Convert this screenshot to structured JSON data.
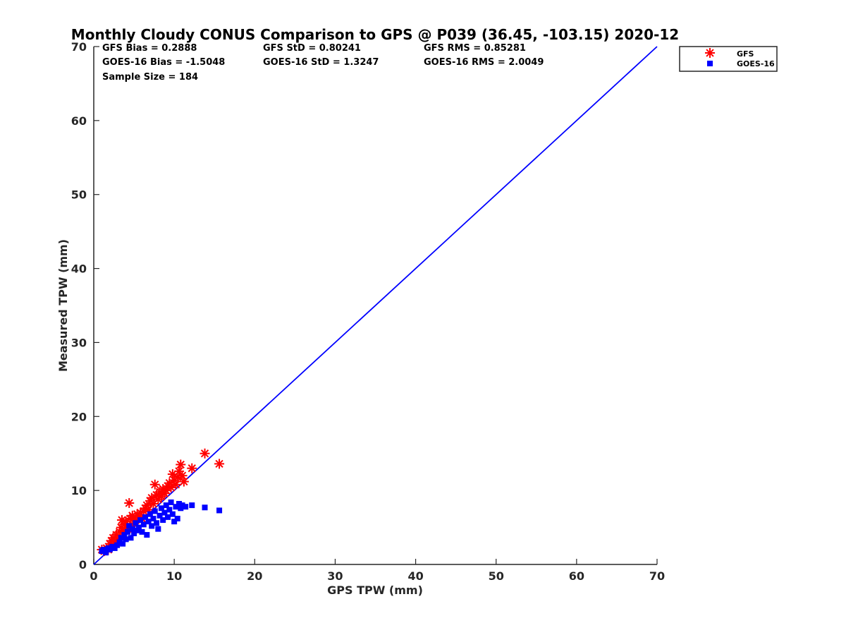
{
  "chart_data": {
    "type": "scatter",
    "title": "Monthly Cloudy CONUS Comparison to GPS @ P039 (36.45, -103.15) 2020-12",
    "xlabel": "GPS TPW (mm)",
    "ylabel": "Measured TPW (mm)",
    "xlim": [
      0,
      70
    ],
    "ylim": [
      0,
      70
    ],
    "xticks": [
      0,
      10,
      20,
      30,
      40,
      50,
      60,
      70
    ],
    "yticks": [
      0,
      10,
      20,
      30,
      40,
      50,
      60,
      70
    ],
    "grid": false,
    "legend_position": "top-right-outside",
    "stats": [
      "GFS Bias = 0.2888",
      "GFS StD = 0.80241",
      "GFS RMS = 0.85281",
      "GOES-16 Bias = -1.5048",
      "GOES-16 StD = 1.3247",
      "GOES-16 RMS = 2.0049",
      "Sample Size = 184"
    ],
    "reference_line": {
      "x": [
        0,
        70
      ],
      "y": [
        0,
        70
      ],
      "color": "#0000ff"
    },
    "series": [
      {
        "name": "GFS",
        "marker": "asterisk",
        "color": "#ff0000",
        "points": [
          [
            1.0,
            2.0
          ],
          [
            1.3,
            1.8
          ],
          [
            1.6,
            2.2
          ],
          [
            1.8,
            2.0
          ],
          [
            2.0,
            2.8
          ],
          [
            2.2,
            3.2
          ],
          [
            2.4,
            3.6
          ],
          [
            2.6,
            3.0
          ],
          [
            2.8,
            4.0
          ],
          [
            3.0,
            3.4
          ],
          [
            3.2,
            4.4
          ],
          [
            3.4,
            5.0
          ],
          [
            3.5,
            6.0
          ],
          [
            3.6,
            4.6
          ],
          [
            3.8,
            5.4
          ],
          [
            4.0,
            5.8
          ],
          [
            4.2,
            4.8
          ],
          [
            4.4,
            8.3
          ],
          [
            4.5,
            6.2
          ],
          [
            4.6,
            5.2
          ],
          [
            4.8,
            6.6
          ],
          [
            5.0,
            5.6
          ],
          [
            5.2,
            6.0
          ],
          [
            5.4,
            6.8
          ],
          [
            5.6,
            6.4
          ],
          [
            5.8,
            7.0
          ],
          [
            6.0,
            6.2
          ],
          [
            6.2,
            7.2
          ],
          [
            6.4,
            7.6
          ],
          [
            6.6,
            8.0
          ],
          [
            6.8,
            7.4
          ],
          [
            7.0,
            8.6
          ],
          [
            7.2,
            9.0
          ],
          [
            7.4,
            8.2
          ],
          [
            7.6,
            10.8
          ],
          [
            7.8,
            9.4
          ],
          [
            8.0,
            8.8
          ],
          [
            8.2,
            9.8
          ],
          [
            8.4,
            9.2
          ],
          [
            8.6,
            10.2
          ],
          [
            8.8,
            9.6
          ],
          [
            9.0,
            10.0
          ],
          [
            9.2,
            10.6
          ],
          [
            9.4,
            11.0
          ],
          [
            9.6,
            10.4
          ],
          [
            9.8,
            12.2
          ],
          [
            10.0,
            11.4
          ],
          [
            10.2,
            10.8
          ],
          [
            10.4,
            11.8
          ],
          [
            10.6,
            12.6
          ],
          [
            10.8,
            13.5
          ],
          [
            11.0,
            12.0
          ],
          [
            11.2,
            11.2
          ],
          [
            12.2,
            13.0
          ],
          [
            13.8,
            15.0
          ],
          [
            15.6,
            13.6
          ]
        ]
      },
      {
        "name": "GOES-16",
        "marker": "square",
        "color": "#0000ff",
        "points": [
          [
            1.0,
            1.8
          ],
          [
            1.2,
            2.0
          ],
          [
            1.5,
            1.6
          ],
          [
            1.8,
            2.2
          ],
          [
            2.0,
            2.0
          ],
          [
            2.3,
            2.4
          ],
          [
            2.6,
            2.2
          ],
          [
            2.9,
            2.6
          ],
          [
            3.2,
            3.0
          ],
          [
            3.4,
            3.6
          ],
          [
            3.6,
            2.8
          ],
          [
            3.8,
            4.0
          ],
          [
            4.0,
            3.4
          ],
          [
            4.2,
            4.4
          ],
          [
            4.4,
            5.2
          ],
          [
            4.6,
            3.6
          ],
          [
            4.8,
            4.8
          ],
          [
            5.0,
            4.2
          ],
          [
            5.2,
            5.6
          ],
          [
            5.4,
            4.6
          ],
          [
            5.6,
            5.0
          ],
          [
            5.8,
            6.0
          ],
          [
            6.0,
            4.4
          ],
          [
            6.2,
            5.4
          ],
          [
            6.4,
            6.4
          ],
          [
            6.6,
            4.0
          ],
          [
            6.8,
            5.8
          ],
          [
            7.0,
            6.8
          ],
          [
            7.2,
            5.2
          ],
          [
            7.4,
            6.2
          ],
          [
            7.6,
            7.2
          ],
          [
            7.8,
            5.6
          ],
          [
            8.0,
            4.8
          ],
          [
            8.2,
            6.6
          ],
          [
            8.4,
            7.6
          ],
          [
            8.6,
            6.0
          ],
          [
            8.8,
            7.0
          ],
          [
            9.0,
            8.0
          ],
          [
            9.2,
            6.4
          ],
          [
            9.4,
            7.4
          ],
          [
            9.6,
            8.4
          ],
          [
            9.8,
            6.8
          ],
          [
            10.0,
            5.8
          ],
          [
            10.2,
            7.8
          ],
          [
            10.4,
            6.2
          ],
          [
            10.6,
            8.2
          ],
          [
            10.8,
            7.6
          ],
          [
            11.0,
            8.0
          ],
          [
            11.4,
            7.8
          ],
          [
            12.2,
            8.0
          ],
          [
            13.8,
            7.7
          ],
          [
            15.6,
            7.3
          ]
        ]
      }
    ]
  }
}
